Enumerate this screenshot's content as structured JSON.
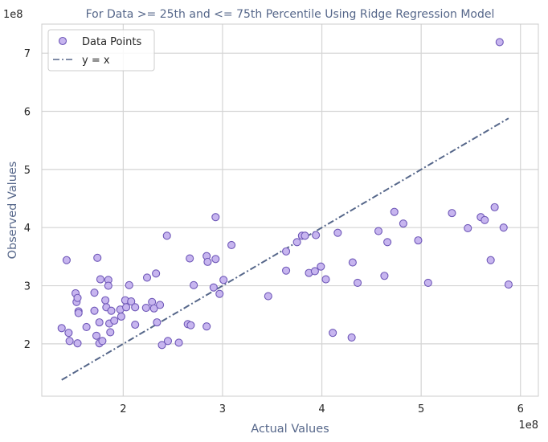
{
  "chart_data": {
    "type": "scatter",
    "title": "For Data >= 25th and <= 75th Percentile Using Ridge Regression Model",
    "xlabel": "Actual Values",
    "ylabel": "Observed Values",
    "x_scale_note": "1e8",
    "y_scale_note": "1e8",
    "xlim": [
      1.18,
      6.18
    ],
    "ylim": [
      1.1,
      7.5
    ],
    "x_ticks": [
      2,
      3,
      4,
      5,
      6
    ],
    "y_ticks": [
      2,
      3,
      4,
      5,
      6,
      7
    ],
    "grid": true,
    "legend_position": "top-left",
    "legend": [
      "Data Points",
      "y = x"
    ],
    "colors": {
      "point_fill": "#c7b5ef",
      "point_edge": "#6f58b8",
      "line": "#56678a",
      "grid": "#d4d4d4",
      "text_accent": "#56678a"
    },
    "series": [
      {
        "name": "Data Points",
        "kind": "scatter",
        "points": [
          [
            1.38,
            2.27
          ],
          [
            1.43,
            3.44
          ],
          [
            1.45,
            2.19
          ],
          [
            1.46,
            2.05
          ],
          [
            1.52,
            2.87
          ],
          [
            1.53,
            2.72
          ],
          [
            1.54,
            2.79
          ],
          [
            1.54,
            2.01
          ],
          [
            1.55,
            2.56
          ],
          [
            1.55,
            2.53
          ],
          [
            1.63,
            2.29
          ],
          [
            1.71,
            2.88
          ],
          [
            1.71,
            2.57
          ],
          [
            1.73,
            2.14
          ],
          [
            1.74,
            3.48
          ],
          [
            1.76,
            2.37
          ],
          [
            1.77,
            3.11
          ],
          [
            1.76,
            2.01
          ],
          [
            1.79,
            2.05
          ],
          [
            1.82,
            2.75
          ],
          [
            1.83,
            2.63
          ],
          [
            1.85,
            3.1
          ],
          [
            1.85,
            3.0
          ],
          [
            1.86,
            2.35
          ],
          [
            1.87,
            2.2
          ],
          [
            1.88,
            2.57
          ],
          [
            1.91,
            2.4
          ],
          [
            1.97,
            2.59
          ],
          [
            1.98,
            2.47
          ],
          [
            2.02,
            2.75
          ],
          [
            2.03,
            2.63
          ],
          [
            2.06,
            3.01
          ],
          [
            2.08,
            2.73
          ],
          [
            2.12,
            2.63
          ],
          [
            2.12,
            2.33
          ],
          [
            2.23,
            2.62
          ],
          [
            2.24,
            3.14
          ],
          [
            2.29,
            2.72
          ],
          [
            2.31,
            2.61
          ],
          [
            2.33,
            3.21
          ],
          [
            2.34,
            2.37
          ],
          [
            2.37,
            2.67
          ],
          [
            2.39,
            1.98
          ],
          [
            2.44,
            3.86
          ],
          [
            2.45,
            2.05
          ],
          [
            2.56,
            2.02
          ],
          [
            2.65,
            2.34
          ],
          [
            2.67,
            3.47
          ],
          [
            2.68,
            2.32
          ],
          [
            2.71,
            3.01
          ],
          [
            2.84,
            3.51
          ],
          [
            2.84,
            2.3
          ],
          [
            2.85,
            3.41
          ],
          [
            2.91,
            2.97
          ],
          [
            2.93,
            3.46
          ],
          [
            2.93,
            4.18
          ],
          [
            2.97,
            2.86
          ],
          [
            3.01,
            3.1
          ],
          [
            3.09,
            3.7
          ],
          [
            3.46,
            2.82
          ],
          [
            3.64,
            3.26
          ],
          [
            3.64,
            3.59
          ],
          [
            3.75,
            3.75
          ],
          [
            3.8,
            3.86
          ],
          [
            3.83,
            3.86
          ],
          [
            3.87,
            3.22
          ],
          [
            3.93,
            3.25
          ],
          [
            3.94,
            3.87
          ],
          [
            3.99,
            3.33
          ],
          [
            4.04,
            3.11
          ],
          [
            4.11,
            2.19
          ],
          [
            4.16,
            3.91
          ],
          [
            4.3,
            2.11
          ],
          [
            4.31,
            3.4
          ],
          [
            4.36,
            3.05
          ],
          [
            4.57,
            3.94
          ],
          [
            4.63,
            3.17
          ],
          [
            4.66,
            3.75
          ],
          [
            4.73,
            4.27
          ],
          [
            4.82,
            4.07
          ],
          [
            4.97,
            3.78
          ],
          [
            5.07,
            3.05
          ],
          [
            5.31,
            4.25
          ],
          [
            5.47,
            3.99
          ],
          [
            5.6,
            4.18
          ],
          [
            5.64,
            4.13
          ],
          [
            5.7,
            3.44
          ],
          [
            5.74,
            4.35
          ],
          [
            5.79,
            7.19
          ],
          [
            5.83,
            4.0
          ],
          [
            5.88,
            3.02
          ]
        ]
      },
      {
        "name": "y = x",
        "kind": "line",
        "points": [
          [
            1.38,
            1.38
          ],
          [
            5.88,
            5.88
          ]
        ]
      }
    ]
  }
}
